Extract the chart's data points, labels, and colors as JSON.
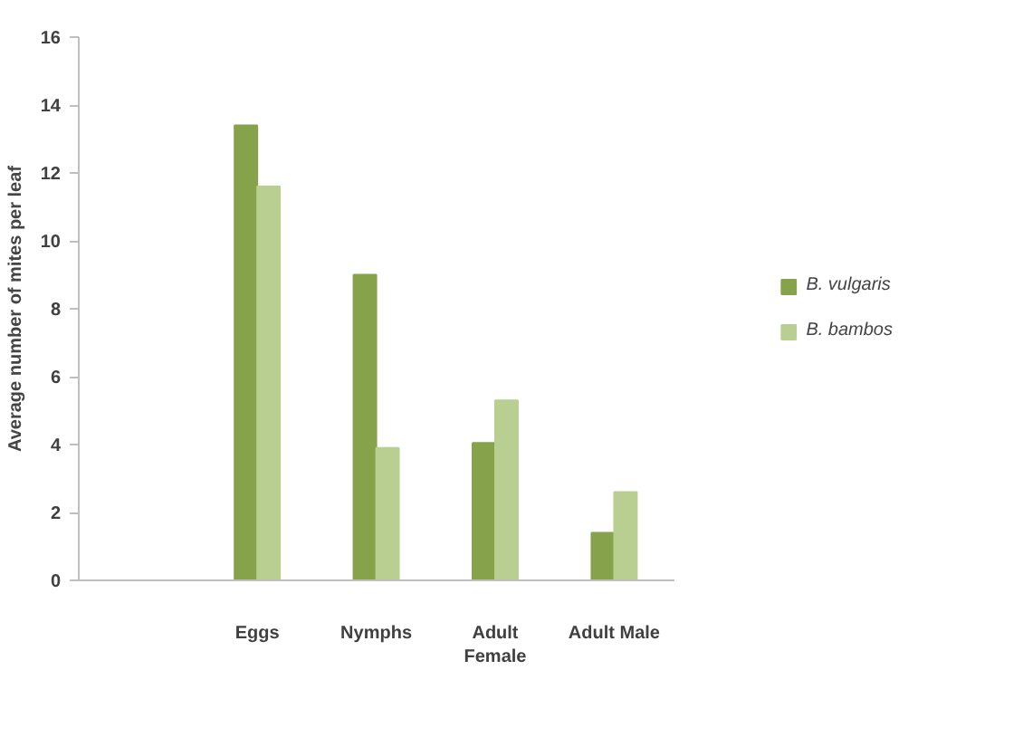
{
  "chart_data": {
    "type": "bar",
    "categories": [
      null,
      "Eggs",
      "Nymphs",
      "Adult Female",
      "Adult Male"
    ],
    "ylabel": "Average number of mites per leaf",
    "series": [
      {
        "name": "B. vulgaris",
        "color": "#86a24a",
        "values": [
          null,
          13.4,
          9.0,
          4.05,
          1.4
        ]
      },
      {
        "name": "B. bambos",
        "color": "#b8cf91",
        "values": [
          null,
          11.6,
          3.9,
          5.3,
          2.6
        ]
      }
    ],
    "ylim": [
      0,
      16
    ],
    "yticks": [
      0,
      2,
      4,
      6,
      8,
      10,
      12,
      14,
      16
    ],
    "grid": false,
    "legend": "right"
  }
}
